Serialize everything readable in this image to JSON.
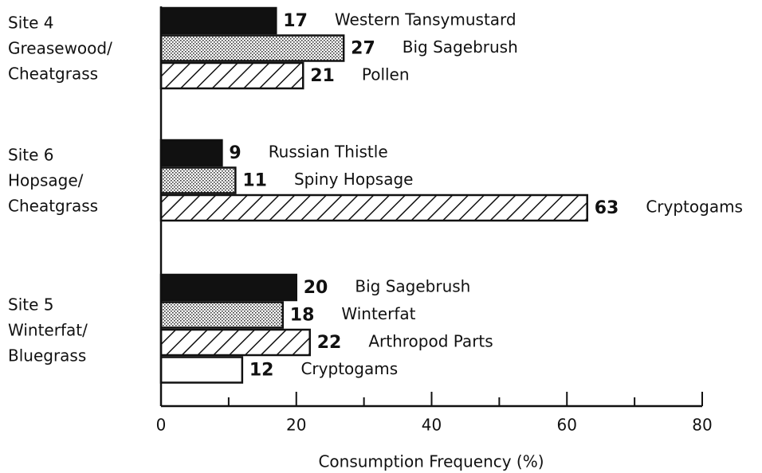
{
  "chart_data": {
    "type": "grouped-hbar",
    "xlabel": "Consumption Frequency (%)",
    "xlim": [
      0,
      80
    ],
    "xticks": [
      0,
      20,
      40,
      60,
      80
    ],
    "xminorticks": [
      10,
      30,
      50,
      70
    ],
    "groups": [
      {
        "label_lines": [
          "Site 4",
          "Greasewood/",
          "Cheatgrass"
        ],
        "items": [
          {
            "name": "Western Tansymustard",
            "value": 17,
            "pattern": "solid"
          },
          {
            "name": "Big Sagebrush",
            "value": 27,
            "pattern": "dotted"
          },
          {
            "name": "Pollen",
            "value": 21,
            "pattern": "hatched"
          }
        ]
      },
      {
        "label_lines": [
          "Site 6",
          "Hopsage/",
          "Cheatgrass"
        ],
        "items": [
          {
            "name": "Russian Thistle",
            "value": 9,
            "pattern": "solid"
          },
          {
            "name": "Spiny Hopsage",
            "value": 11,
            "pattern": "dotted"
          },
          {
            "name": "Cryptogams",
            "value": 63,
            "pattern": "hatched"
          }
        ]
      },
      {
        "label_lines": [
          "Site 5",
          "Winterfat/",
          "Bluegrass"
        ],
        "items": [
          {
            "name": "Big Sagebrush",
            "value": 20,
            "pattern": "solid"
          },
          {
            "name": "Winterfat",
            "value": 18,
            "pattern": "dotted"
          },
          {
            "name": "Arthropod Parts",
            "value": 22,
            "pattern": "hatched"
          },
          {
            "name": "Cryptogams",
            "value": 12,
            "pattern": "empty"
          }
        ]
      }
    ]
  }
}
